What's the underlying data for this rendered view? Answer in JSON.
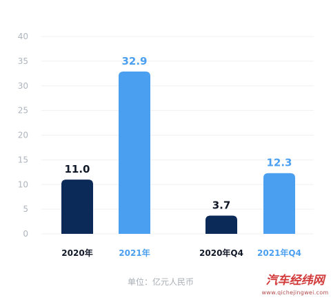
{
  "chart_data": {
    "type": "bar",
    "categories": [
      "2020年",
      "2021年",
      "2020年Q4",
      "2021年Q4"
    ],
    "values": [
      11.0,
      32.9,
      3.7,
      12.3
    ],
    "value_labels": [
      "11.0",
      "32.9",
      "3.7",
      "12.3"
    ],
    "y_ticks": [
      0,
      5,
      10,
      15,
      20,
      25,
      30,
      35,
      40
    ],
    "ylim": [
      0,
      40
    ],
    "grid": true,
    "unit_note": "单位：亿元人民币",
    "colors": {
      "dark": "#0c2a57",
      "light": "#4a9ff0",
      "dark_label": "#111827",
      "light_label": "#4a9ff0"
    },
    "bar_color_keys": [
      "dark",
      "light",
      "dark",
      "light"
    ]
  },
  "watermark": {
    "cn": "汽车经纬网",
    "en": "www.qichejingwei.com"
  }
}
